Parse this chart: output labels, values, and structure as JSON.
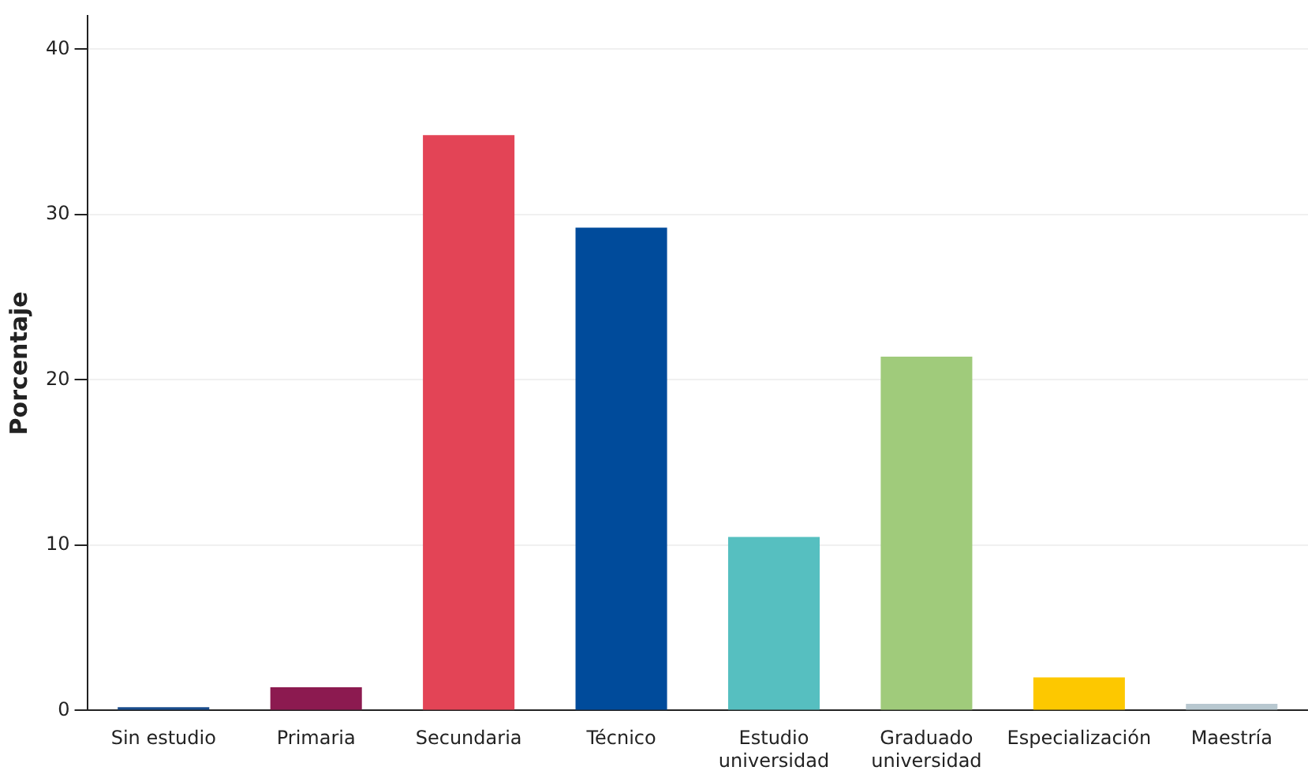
{
  "chart_data": {
    "type": "bar",
    "ylabel": "Porcentaje",
    "categories": [
      "Sin estudio",
      "Primaria",
      "Secundaria",
      "Técnico",
      "Estudio universidad",
      "Graduado universidad",
      "Especialización",
      "Maestría"
    ],
    "values": [
      0.2,
      1.4,
      34.8,
      29.2,
      10.5,
      21.4,
      2.0,
      0.4
    ],
    "colors": [
      "#1a4c8c",
      "#8c1a50",
      "#e34456",
      "#004b9b",
      "#56bfc0",
      "#a0cb7b",
      "#fdc800",
      "#b8c8d0"
    ],
    "ylim": [
      0,
      42
    ],
    "yticks": [
      0,
      10,
      20,
      30,
      40
    ],
    "grid": "y",
    "legend": false
  }
}
